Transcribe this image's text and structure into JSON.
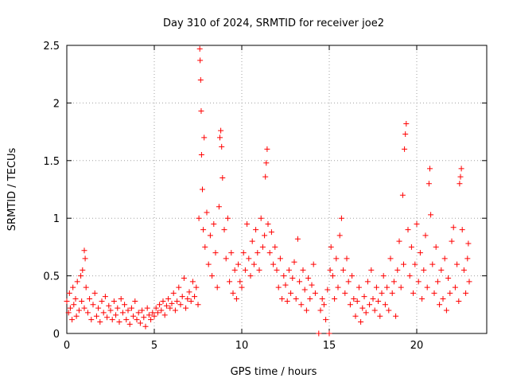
{
  "chart_data": {
    "type": "scatter",
    "title": "Day 310 of 2024, SRMTID for receiver joe2",
    "xlabel": "GPS time / hours",
    "ylabel": "SRMTID / TECUs",
    "xlim": [
      0,
      24
    ],
    "ylim": [
      0,
      2.5
    ],
    "x_ticks": [
      0,
      5,
      10,
      15,
      20
    ],
    "x_tick_labels": [
      "0",
      "5",
      "10",
      "15",
      "20"
    ],
    "y_ticks": [
      0,
      0.5,
      1,
      1.5,
      2,
      2.5
    ],
    "y_tick_labels": [
      "0",
      "0.5",
      "1",
      "1.5",
      "2",
      "2.5"
    ],
    "grid": true,
    "marker": "+",
    "series": [
      {
        "name": "SRMTID",
        "color": "#ff0000",
        "points": [
          [
            0.0,
            0.28
          ],
          [
            0.1,
            0.18
          ],
          [
            0.15,
            0.35
          ],
          [
            0.2,
            0.22
          ],
          [
            0.3,
            0.12
          ],
          [
            0.35,
            0.4
          ],
          [
            0.4,
            0.25
          ],
          [
            0.5,
            0.3
          ],
          [
            0.55,
            0.15
          ],
          [
            0.6,
            0.45
          ],
          [
            0.7,
            0.2
          ],
          [
            0.8,
            0.5
          ],
          [
            0.85,
            0.28
          ],
          [
            0.9,
            0.55
          ],
          [
            1.0,
            0.22
          ],
          [
            1.0,
            0.72
          ],
          [
            1.05,
            0.65
          ],
          [
            1.1,
            0.4
          ],
          [
            1.2,
            0.18
          ],
          [
            1.3,
            0.3
          ],
          [
            1.4,
            0.12
          ],
          [
            1.5,
            0.25
          ],
          [
            1.6,
            0.35
          ],
          [
            1.7,
            0.15
          ],
          [
            1.8,
            0.22
          ],
          [
            1.9,
            0.1
          ],
          [
            2.0,
            0.28
          ],
          [
            2.1,
            0.18
          ],
          [
            2.2,
            0.32
          ],
          [
            2.3,
            0.14
          ],
          [
            2.4,
            0.24
          ],
          [
            2.5,
            0.2
          ],
          [
            2.6,
            0.12
          ],
          [
            2.7,
            0.28
          ],
          [
            2.8,
            0.16
          ],
          [
            2.9,
            0.22
          ],
          [
            3.0,
            0.1
          ],
          [
            3.1,
            0.3
          ],
          [
            3.2,
            0.18
          ],
          [
            3.3,
            0.25
          ],
          [
            3.4,
            0.12
          ],
          [
            3.5,
            0.2
          ],
          [
            3.6,
            0.08
          ],
          [
            3.7,
            0.22
          ],
          [
            3.8,
            0.15
          ],
          [
            3.9,
            0.28
          ],
          [
            4.0,
            0.12
          ],
          [
            4.1,
            0.18
          ],
          [
            4.2,
            0.09
          ],
          [
            4.3,
            0.2
          ],
          [
            4.4,
            0.14
          ],
          [
            4.5,
            0.06
          ],
          [
            4.6,
            0.22
          ],
          [
            4.7,
            0.16
          ],
          [
            4.8,
            0.12
          ],
          [
            4.9,
            0.18
          ],
          [
            5.0,
            0.15
          ],
          [
            5.1,
            0.22
          ],
          [
            5.2,
            0.18
          ],
          [
            5.3,
            0.25
          ],
          [
            5.4,
            0.2
          ],
          [
            5.5,
            0.28
          ],
          [
            5.6,
            0.16
          ],
          [
            5.7,
            0.24
          ],
          [
            5.8,
            0.3
          ],
          [
            5.9,
            0.22
          ],
          [
            6.0,
            0.26
          ],
          [
            6.1,
            0.35
          ],
          [
            6.2,
            0.2
          ],
          [
            6.3,
            0.28
          ],
          [
            6.4,
            0.4
          ],
          [
            6.5,
            0.25
          ],
          [
            6.6,
            0.32
          ],
          [
            6.7,
            0.48
          ],
          [
            6.8,
            0.22
          ],
          [
            6.9,
            0.3
          ],
          [
            7.0,
            0.36
          ],
          [
            7.1,
            0.28
          ],
          [
            7.2,
            0.45
          ],
          [
            7.3,
            0.32
          ],
          [
            7.4,
            0.4
          ],
          [
            7.5,
            0.25
          ],
          [
            7.55,
            1.0
          ],
          [
            7.6,
            2.47
          ],
          [
            7.62,
            2.37
          ],
          [
            7.65,
            2.2
          ],
          [
            7.68,
            1.93
          ],
          [
            7.7,
            1.55
          ],
          [
            7.75,
            1.25
          ],
          [
            7.8,
            0.9
          ],
          [
            7.85,
            1.7
          ],
          [
            7.9,
            0.75
          ],
          [
            8.0,
            1.05
          ],
          [
            8.1,
            0.6
          ],
          [
            8.2,
            0.85
          ],
          [
            8.3,
            0.5
          ],
          [
            8.4,
            0.95
          ],
          [
            8.5,
            0.7
          ],
          [
            8.6,
            0.4
          ],
          [
            8.7,
            1.1
          ],
          [
            8.75,
            1.7
          ],
          [
            8.8,
            1.76
          ],
          [
            8.85,
            1.62
          ],
          [
            8.9,
            1.35
          ],
          [
            9.0,
            0.9
          ],
          [
            9.1,
            0.65
          ],
          [
            9.2,
            1.0
          ],
          [
            9.3,
            0.45
          ],
          [
            9.4,
            0.7
          ],
          [
            9.5,
            0.35
          ],
          [
            9.6,
            0.55
          ],
          [
            9.7,
            0.3
          ],
          [
            9.8,
            0.6
          ],
          [
            9.9,
            0.45
          ],
          [
            10.0,
            0.4
          ],
          [
            10.1,
            0.7
          ],
          [
            10.2,
            0.55
          ],
          [
            10.3,
            0.95
          ],
          [
            10.4,
            0.65
          ],
          [
            10.5,
            0.5
          ],
          [
            10.6,
            0.8
          ],
          [
            10.7,
            0.6
          ],
          [
            10.8,
            0.9
          ],
          [
            10.9,
            0.7
          ],
          [
            11.0,
            0.55
          ],
          [
            11.1,
            1.0
          ],
          [
            11.2,
            0.75
          ],
          [
            11.3,
            0.85
          ],
          [
            11.35,
            1.36
          ],
          [
            11.4,
            1.48
          ],
          [
            11.45,
            1.6
          ],
          [
            11.5,
            0.95
          ],
          [
            11.6,
            0.7
          ],
          [
            11.7,
            0.88
          ],
          [
            11.8,
            0.6
          ],
          [
            11.9,
            0.75
          ],
          [
            12.0,
            0.55
          ],
          [
            12.1,
            0.4
          ],
          [
            12.2,
            0.65
          ],
          [
            12.3,
            0.3
          ],
          [
            12.4,
            0.5
          ],
          [
            12.5,
            0.42
          ],
          [
            12.6,
            0.28
          ],
          [
            12.7,
            0.55
          ],
          [
            12.8,
            0.35
          ],
          [
            12.9,
            0.48
          ],
          [
            13.0,
            0.62
          ],
          [
            13.1,
            0.3
          ],
          [
            13.2,
            0.82
          ],
          [
            13.3,
            0.45
          ],
          [
            13.4,
            0.25
          ],
          [
            13.5,
            0.55
          ],
          [
            13.6,
            0.38
          ],
          [
            13.7,
            0.2
          ],
          [
            13.8,
            0.48
          ],
          [
            13.9,
            0.3
          ],
          [
            14.0,
            0.42
          ],
          [
            14.1,
            0.6
          ],
          [
            14.2,
            0.35
          ],
          [
            14.4,
            0.0
          ],
          [
            14.5,
            0.2
          ],
          [
            14.6,
            0.3
          ],
          [
            14.7,
            0.25
          ],
          [
            14.8,
            0.12
          ],
          [
            14.9,
            0.38
          ],
          [
            15.0,
            0.0
          ],
          [
            15.05,
            0.55
          ],
          [
            15.1,
            0.75
          ],
          [
            15.2,
            0.5
          ],
          [
            15.3,
            0.3
          ],
          [
            15.4,
            0.65
          ],
          [
            15.5,
            0.4
          ],
          [
            15.6,
            0.85
          ],
          [
            15.7,
            1.0
          ],
          [
            15.8,
            0.55
          ],
          [
            15.9,
            0.35
          ],
          [
            16.0,
            0.65
          ],
          [
            16.1,
            0.45
          ],
          [
            16.2,
            0.25
          ],
          [
            16.3,
            0.5
          ],
          [
            16.4,
            0.3
          ],
          [
            16.5,
            0.15
          ],
          [
            16.6,
            0.28
          ],
          [
            16.7,
            0.4
          ],
          [
            16.8,
            0.1
          ],
          [
            16.9,
            0.22
          ],
          [
            17.0,
            0.32
          ],
          [
            17.1,
            0.18
          ],
          [
            17.2,
            0.45
          ],
          [
            17.3,
            0.25
          ],
          [
            17.4,
            0.55
          ],
          [
            17.5,
            0.3
          ],
          [
            17.6,
            0.2
          ],
          [
            17.7,
            0.4
          ],
          [
            17.8,
            0.28
          ],
          [
            17.9,
            0.15
          ],
          [
            18.0,
            0.35
          ],
          [
            18.1,
            0.5
          ],
          [
            18.2,
            0.25
          ],
          [
            18.3,
            0.4
          ],
          [
            18.4,
            0.2
          ],
          [
            18.5,
            0.65
          ],
          [
            18.6,
            0.35
          ],
          [
            18.7,
            0.45
          ],
          [
            18.8,
            0.15
          ],
          [
            18.9,
            0.55
          ],
          [
            19.0,
            0.8
          ],
          [
            19.1,
            0.4
          ],
          [
            19.2,
            1.2
          ],
          [
            19.25,
            0.6
          ],
          [
            19.3,
            1.6
          ],
          [
            19.35,
            1.73
          ],
          [
            19.4,
            1.82
          ],
          [
            19.5,
            0.9
          ],
          [
            19.6,
            0.5
          ],
          [
            19.7,
            0.75
          ],
          [
            19.8,
            0.35
          ],
          [
            19.9,
            0.6
          ],
          [
            20.0,
            0.95
          ],
          [
            20.1,
            0.45
          ],
          [
            20.2,
            0.7
          ],
          [
            20.3,
            0.3
          ],
          [
            20.4,
            0.55
          ],
          [
            20.5,
            0.85
          ],
          [
            20.6,
            0.4
          ],
          [
            20.7,
            1.3
          ],
          [
            20.75,
            1.43
          ],
          [
            20.8,
            1.03
          ],
          [
            20.9,
            0.6
          ],
          [
            21.0,
            0.35
          ],
          [
            21.1,
            0.75
          ],
          [
            21.2,
            0.45
          ],
          [
            21.3,
            0.25
          ],
          [
            21.4,
            0.55
          ],
          [
            21.5,
            0.3
          ],
          [
            21.6,
            0.65
          ],
          [
            21.7,
            0.2
          ],
          [
            21.8,
            0.48
          ],
          [
            21.9,
            0.35
          ],
          [
            22.0,
            0.8
          ],
          [
            22.1,
            0.92
          ],
          [
            22.2,
            0.4
          ],
          [
            22.3,
            0.6
          ],
          [
            22.4,
            0.28
          ],
          [
            22.45,
            1.3
          ],
          [
            22.5,
            1.36
          ],
          [
            22.55,
            1.43
          ],
          [
            22.6,
            0.9
          ],
          [
            22.7,
            0.55
          ],
          [
            22.8,
            0.35
          ],
          [
            22.9,
            0.65
          ],
          [
            22.95,
            0.78
          ],
          [
            23.0,
            0.45
          ]
        ]
      }
    ]
  }
}
